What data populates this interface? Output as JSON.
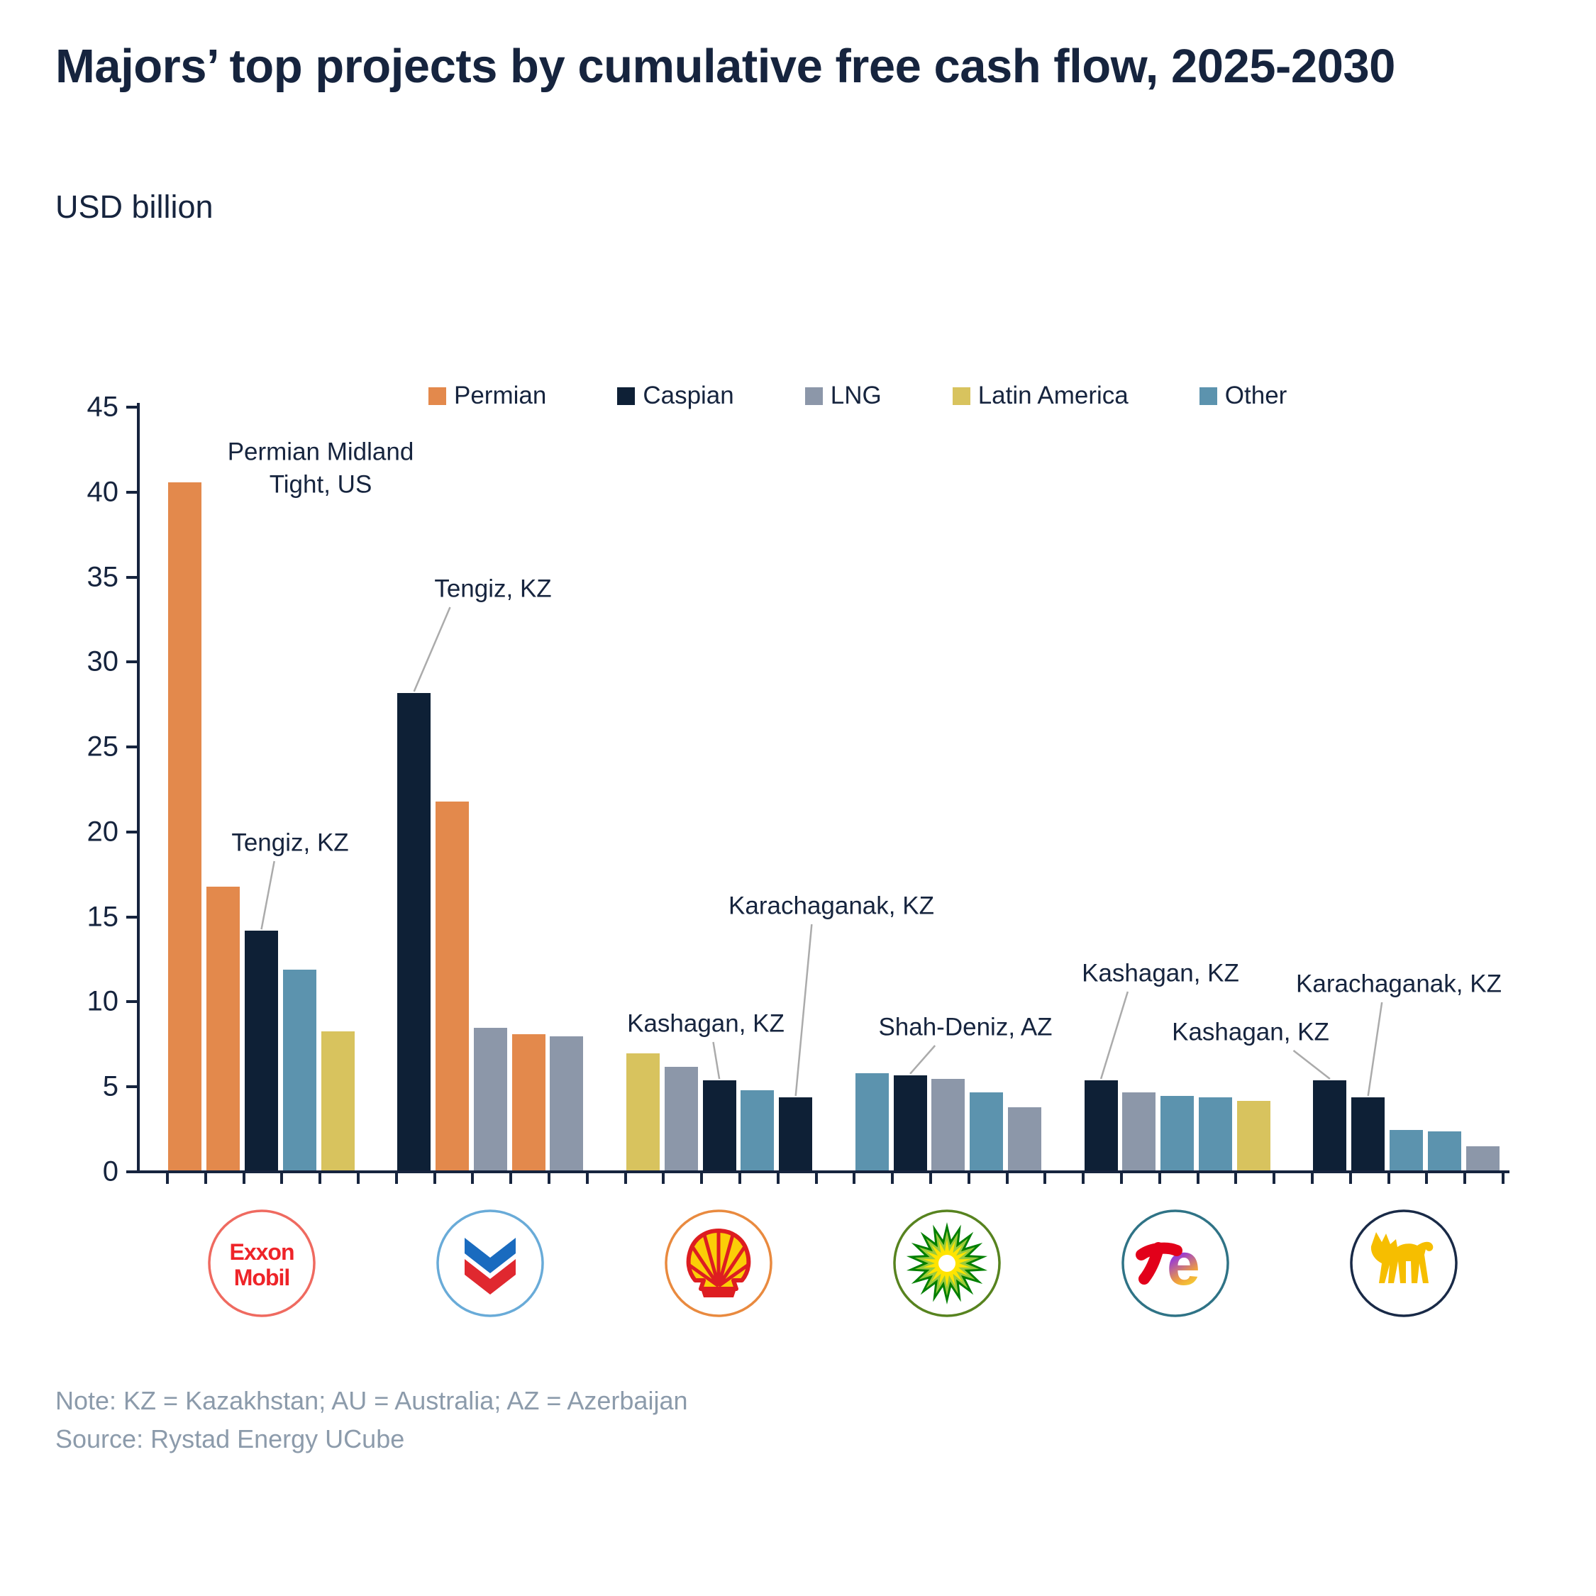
{
  "header": {
    "title": "Majors’ top projects by cumulative free cash flow, 2025-2030",
    "subtitle": "USD billion"
  },
  "footer": {
    "note": "Note: KZ = Kazakhstan; AU = Australia; AZ = Azerbaijan",
    "source": "Source: Rystad Energy UCube"
  },
  "logos": {
    "exxonmobil": {
      "line1": "Exxon",
      "line2": "Mobil"
    }
  },
  "chart_data": {
    "type": "bar",
    "title": "Majors’ top projects by cumulative free cash flow, 2025-2030",
    "unit": "USD billion",
    "ylim": [
      0,
      45
    ],
    "ytick_interval": 5,
    "grid": false,
    "legend_position": "top",
    "categories": [
      "ExxonMobil",
      "Chevron",
      "Shell",
      "BP",
      "TotalEnergies",
      "Eni"
    ],
    "regions": [
      {
        "name": "Permian",
        "color": "#E3894C"
      },
      {
        "name": "Caspian",
        "color": "#0E2036"
      },
      {
        "name": "LNG",
        "color": "#8C97A9"
      },
      {
        "name": "Latin America",
        "color": "#D8C35E"
      },
      {
        "name": "Other",
        "color": "#5C93AE"
      }
    ],
    "groups": [
      {
        "company": "ExxonMobil",
        "bars": [
          {
            "region": "Permian",
            "value": 40.5
          },
          {
            "region": "Permian",
            "value": 16.7
          },
          {
            "region": "Caspian",
            "value": 14.1
          },
          {
            "region": "Other",
            "value": 11.8
          },
          {
            "region": "Latin America",
            "value": 8.2
          }
        ]
      },
      {
        "company": "Chevron",
        "bars": [
          {
            "region": "Caspian",
            "value": 28.1
          },
          {
            "region": "Permian",
            "value": 21.7
          },
          {
            "region": "LNG",
            "value": 8.4
          },
          {
            "region": "Permian",
            "value": 8.0
          },
          {
            "region": "LNG",
            "value": 7.9
          }
        ]
      },
      {
        "company": "Shell",
        "bars": [
          {
            "region": "Latin America",
            "value": 6.9
          },
          {
            "region": "LNG",
            "value": 6.1
          },
          {
            "region": "Caspian",
            "value": 5.3
          },
          {
            "region": "Other",
            "value": 4.7
          },
          {
            "region": "Caspian",
            "value": 4.3
          }
        ]
      },
      {
        "company": "BP",
        "bars": [
          {
            "region": "Other",
            "value": 5.7
          },
          {
            "region": "Caspian",
            "value": 5.6
          },
          {
            "region": "LNG",
            "value": 5.4
          },
          {
            "region": "Other",
            "value": 4.6
          },
          {
            "region": "LNG",
            "value": 3.7
          }
        ]
      },
      {
        "company": "TotalEnergies",
        "bars": [
          {
            "region": "Caspian",
            "value": 5.3
          },
          {
            "region": "LNG",
            "value": 4.6
          },
          {
            "region": "Other",
            "value": 4.4
          },
          {
            "region": "Other",
            "value": 4.3
          },
          {
            "region": "Latin America",
            "value": 4.1
          }
        ]
      },
      {
        "company": "Eni",
        "bars": [
          {
            "region": "Caspian",
            "value": 5.3
          },
          {
            "region": "Caspian",
            "value": 4.3
          },
          {
            "region": "Other",
            "value": 2.4
          },
          {
            "region": "Other",
            "value": 2.3
          },
          {
            "region": "LNG",
            "value": 1.4
          }
        ]
      }
    ],
    "annotations": [
      {
        "text": "Permian Midland Tight, US",
        "group": 0,
        "bar": 0,
        "x": 452,
        "y": 660,
        "wrap": true,
        "leader": false
      },
      {
        "text": "Tengiz, KZ",
        "group": 0,
        "bar": 2,
        "x": 409,
        "y": 1188,
        "wrap": false,
        "leader": true
      },
      {
        "text": "Tengiz, KZ",
        "group": 1,
        "bar": 0,
        "x": 695,
        "y": 830,
        "wrap": false,
        "leader": true
      },
      {
        "text": "Kashagan, KZ",
        "group": 2,
        "bar": 2,
        "x": 995,
        "y": 1443,
        "wrap": false,
        "leader": true
      },
      {
        "text": "Karachaganak, KZ",
        "group": 2,
        "bar": 4,
        "x": 1172,
        "y": 1277,
        "wrap": false,
        "leader": true
      },
      {
        "text": "Shah-Deniz, AZ",
        "group": 3,
        "bar": 1,
        "x": 1361,
        "y": 1448,
        "wrap": false,
        "leader": true
      },
      {
        "text": "Kashagan, KZ",
        "group": 4,
        "bar": 0,
        "x": 1636,
        "y": 1372,
        "wrap": false,
        "leader": true
      },
      {
        "text": "Kashagan, KZ",
        "group": 5,
        "bar": 0,
        "x": 1763,
        "y": 1455,
        "wrap": false,
        "leader": true
      },
      {
        "text": "Karachaganak, KZ",
        "group": 5,
        "bar": 1,
        "x": 1972,
        "y": 1387,
        "wrap": false,
        "leader": true
      }
    ]
  }
}
